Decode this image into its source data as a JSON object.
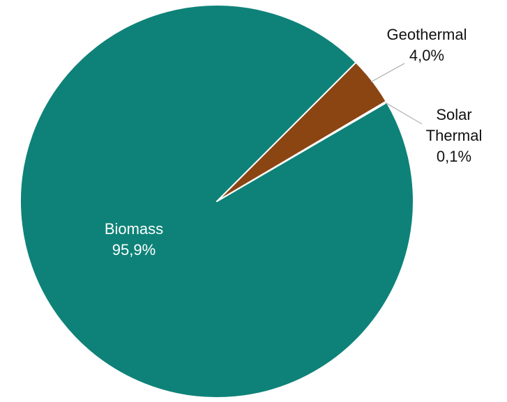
{
  "chart_data": {
    "type": "pie",
    "title": "",
    "slices": [
      {
        "label_lines": [
          "Biomass"
        ],
        "value": 95.9,
        "value_label": "95,9%",
        "color": "#0e8278",
        "label_color": "#ffffff",
        "label_placement": "inside"
      },
      {
        "label_lines": [
          "Geothermal"
        ],
        "value": 4.0,
        "value_label": "4,0%",
        "color": "#8b4513",
        "label_color": "#111111",
        "label_placement": "outside"
      },
      {
        "label_lines": [
          "Solar",
          "Thermal"
        ],
        "value": 0.1,
        "value_label": "0,1%",
        "color": "#e8c07d",
        "label_color": "#111111",
        "label_placement": "outside"
      }
    ],
    "start_angle_deg": 45,
    "direction": "clockwise",
    "legend": "none"
  }
}
